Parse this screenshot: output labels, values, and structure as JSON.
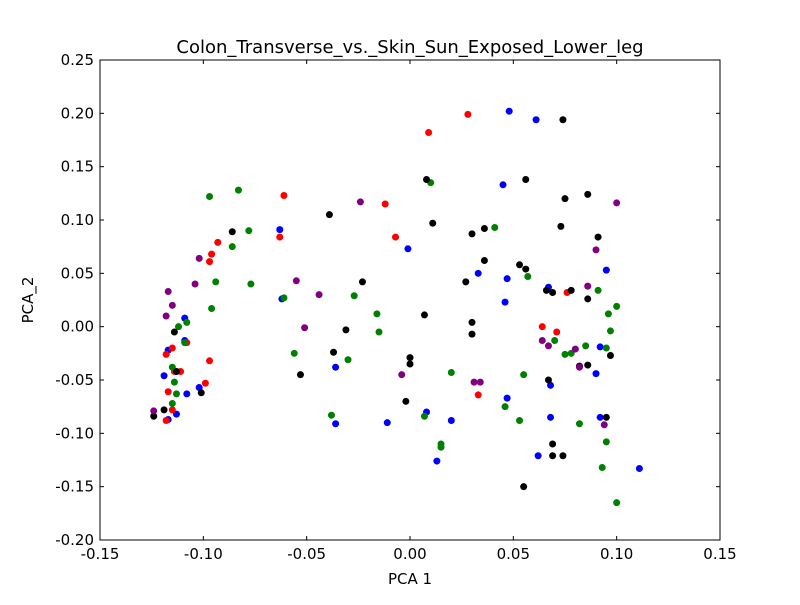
{
  "chart_data": {
    "type": "scatter",
    "title": "Colon_Transverse_vs._Skin_Sun_Exposed_Lower_leg",
    "xlabel": "PCA 1",
    "ylabel": "PCA_2",
    "xlim": [
      -0.15,
      0.15
    ],
    "ylim": [
      -0.2,
      0.25
    ],
    "xticks": [
      -0.15,
      -0.1,
      -0.05,
      0.0,
      0.05,
      0.1,
      0.15
    ],
    "yticks": [
      -0.2,
      -0.15,
      -0.1,
      -0.05,
      0.0,
      0.05,
      0.1,
      0.15,
      0.2,
      0.25
    ],
    "grid": false,
    "series": [
      {
        "color": "#0000ff",
        "points": [
          [
            0.048,
            0.202
          ],
          [
            0.061,
            0.194
          ],
          [
            0.045,
            0.133
          ],
          [
            -0.063,
            0.091
          ],
          [
            -0.001,
            0.073
          ],
          [
            0.033,
            0.05
          ],
          [
            0.047,
            0.045
          ],
          [
            0.095,
            0.053
          ],
          [
            0.046,
            0.023
          ],
          [
            0.067,
            0.037
          ],
          [
            -0.062,
            0.026
          ],
          [
            -0.109,
            0.008
          ],
          [
            -0.117,
            -0.022
          ],
          [
            -0.119,
            -0.046
          ],
          [
            -0.113,
            -0.082
          ],
          [
            -0.117,
            -0.087
          ],
          [
            -0.108,
            -0.063
          ],
          [
            -0.102,
            -0.057
          ],
          [
            -0.109,
            -0.013
          ],
          [
            -0.036,
            -0.038
          ],
          [
            -0.036,
            -0.091
          ],
          [
            -0.011,
            -0.09
          ],
          [
            0.008,
            -0.08
          ],
          [
            0.02,
            -0.088
          ],
          [
            0.013,
            -0.126
          ],
          [
            0.047,
            -0.067
          ],
          [
            0.068,
            -0.085
          ],
          [
            0.068,
            -0.055
          ],
          [
            0.09,
            -0.044
          ],
          [
            0.092,
            -0.019
          ],
          [
            0.092,
            -0.085
          ],
          [
            0.062,
            -0.121
          ],
          [
            0.111,
            -0.133
          ]
        ]
      },
      {
        "color": "#ff0000",
        "points": [
          [
            0.009,
            0.182
          ],
          [
            0.028,
            0.199
          ],
          [
            -0.061,
            0.123
          ],
          [
            -0.012,
            0.115
          ],
          [
            -0.007,
            0.084
          ],
          [
            -0.063,
            0.084
          ],
          [
            -0.093,
            0.079
          ],
          [
            -0.096,
            0.068
          ],
          [
            -0.097,
            0.061
          ],
          [
            -0.115,
            -0.02
          ],
          [
            -0.118,
            -0.026
          ],
          [
            -0.117,
            -0.061
          ],
          [
            -0.114,
            -0.042
          ],
          [
            -0.111,
            -0.042
          ],
          [
            -0.108,
            -0.015
          ],
          [
            -0.097,
            -0.032
          ],
          [
            -0.099,
            -0.053
          ],
          [
            -0.115,
            -0.078
          ],
          [
            -0.118,
            -0.088
          ],
          [
            0.033,
            -0.064
          ],
          [
            0.064,
            0.0
          ],
          [
            0.071,
            -0.005
          ],
          [
            0.076,
            0.032
          ]
        ]
      },
      {
        "color": "#008000",
        "points": [
          [
            -0.097,
            0.122
          ],
          [
            -0.083,
            0.128
          ],
          [
            0.01,
            0.135
          ],
          [
            -0.078,
            0.09
          ],
          [
            -0.086,
            0.075
          ],
          [
            -0.077,
            0.04
          ],
          [
            -0.094,
            0.042
          ],
          [
            -0.096,
            0.017
          ],
          [
            -0.061,
            0.027
          ],
          [
            -0.027,
            0.029
          ],
          [
            -0.016,
            0.012
          ],
          [
            -0.015,
            -0.005
          ],
          [
            -0.108,
            0.004
          ],
          [
            -0.112,
            0.0
          ],
          [
            -0.109,
            -0.015
          ],
          [
            -0.115,
            -0.038
          ],
          [
            -0.114,
            -0.052
          ],
          [
            -0.113,
            -0.063
          ],
          [
            -0.115,
            -0.072
          ],
          [
            -0.056,
            -0.025
          ],
          [
            -0.03,
            -0.031
          ],
          [
            -0.038,
            -0.083
          ],
          [
            0.007,
            -0.084
          ],
          [
            0.015,
            -0.11
          ],
          [
            0.015,
            -0.113
          ],
          [
            0.02,
            -0.043
          ],
          [
            0.041,
            0.093
          ],
          [
            0.057,
            0.047
          ],
          [
            0.055,
            -0.045
          ],
          [
            0.046,
            -0.075
          ],
          [
            0.053,
            -0.088
          ],
          [
            0.07,
            -0.013
          ],
          [
            0.075,
            -0.026
          ],
          [
            0.078,
            -0.025
          ],
          [
            0.082,
            -0.091
          ],
          [
            0.085,
            -0.018
          ],
          [
            0.091,
            0.034
          ],
          [
            0.096,
            0.012
          ],
          [
            0.1,
            0.019
          ],
          [
            0.097,
            -0.004
          ],
          [
            0.095,
            -0.02
          ],
          [
            0.095,
            -0.108
          ],
          [
            0.093,
            -0.132
          ],
          [
            0.1,
            -0.165
          ]
        ]
      },
      {
        "color": "#000000",
        "points": [
          [
            0.074,
            0.194
          ],
          [
            0.008,
            0.138
          ],
          [
            0.056,
            0.138
          ],
          [
            0.086,
            0.124
          ],
          [
            0.075,
            0.12
          ],
          [
            -0.039,
            0.105
          ],
          [
            0.011,
            0.097
          ],
          [
            -0.086,
            0.089
          ],
          [
            0.03,
            0.087
          ],
          [
            0.036,
            0.092
          ],
          [
            0.073,
            0.094
          ],
          [
            0.091,
            0.084
          ],
          [
            0.036,
            0.062
          ],
          [
            0.053,
            0.058
          ],
          [
            0.056,
            0.054
          ],
          [
            0.027,
            0.042
          ],
          [
            -0.023,
            0.042
          ],
          [
            0.066,
            0.034
          ],
          [
            0.069,
            0.032
          ],
          [
            0.078,
            0.034
          ],
          [
            0.086,
            0.026
          ],
          [
            0.007,
            0.011
          ],
          [
            0.03,
            0.004
          ],
          [
            0.03,
            -0.007
          ],
          [
            -0.031,
            -0.003
          ],
          [
            -0.037,
            -0.024
          ],
          [
            -0.114,
            -0.005
          ],
          [
            -0.113,
            -0.042
          ],
          [
            -0.053,
            -0.045
          ],
          [
            0.0,
            -0.029
          ],
          [
            0.0,
            -0.035
          ],
          [
            -0.002,
            -0.07
          ],
          [
            -0.119,
            -0.078
          ],
          [
            -0.124,
            -0.084
          ],
          [
            -0.101,
            -0.062
          ],
          [
            0.067,
            -0.05
          ],
          [
            0.069,
            -0.11
          ],
          [
            0.069,
            -0.121
          ],
          [
            0.074,
            -0.121
          ],
          [
            0.082,
            -0.037
          ],
          [
            0.086,
            -0.036
          ],
          [
            0.097,
            -0.027
          ],
          [
            0.095,
            -0.085
          ],
          [
            0.055,
            -0.15
          ]
        ]
      },
      {
        "color": "#800080",
        "points": [
          [
            -0.024,
            0.117
          ],
          [
            0.1,
            0.116
          ],
          [
            -0.102,
            0.064
          ],
          [
            -0.055,
            0.043
          ],
          [
            -0.044,
            0.03
          ],
          [
            -0.117,
            0.033
          ],
          [
            -0.115,
            0.02
          ],
          [
            -0.118,
            0.01
          ],
          [
            -0.104,
            0.04
          ],
          [
            -0.051,
            -0.001
          ],
          [
            -0.004,
            -0.045
          ],
          [
            0.031,
            -0.052
          ],
          [
            0.034,
            -0.052
          ],
          [
            0.064,
            -0.013
          ],
          [
            0.067,
            -0.018
          ],
          [
            0.082,
            -0.038
          ],
          [
            0.086,
            0.038
          ],
          [
            0.09,
            0.072
          ],
          [
            0.08,
            -0.021
          ],
          [
            -0.124,
            -0.079
          ],
          [
            0.094,
            -0.092
          ]
        ]
      }
    ]
  }
}
